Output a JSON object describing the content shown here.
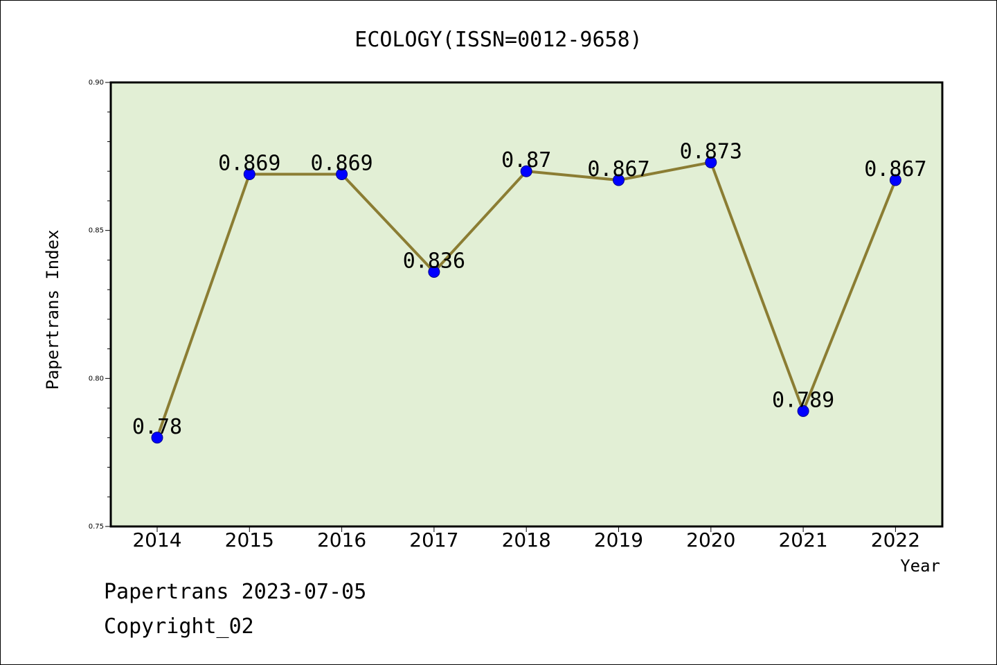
{
  "chart_data": {
    "type": "line",
    "title": "ECOLOGY(ISSN=0012-9658)",
    "xlabel": "Year",
    "ylabel": "Papertrans Index",
    "categories": [
      "2014",
      "2015",
      "2016",
      "2017",
      "2018",
      "2019",
      "2020",
      "2021",
      "2022"
    ],
    "series": [
      {
        "values": [
          0.78,
          0.869,
          0.869,
          0.836,
          0.87,
          0.867,
          0.873,
          0.789,
          0.867
        ],
        "labels": [
          "0.78",
          "0.869",
          "0.869",
          "0.836",
          "0.87",
          "0.867",
          "0.873",
          "0.789",
          "0.867"
        ]
      }
    ],
    "ylim": [
      0.75,
      0.9
    ],
    "yticks": [
      "0.75",
      "0.80",
      "0.85",
      "0.90"
    ],
    "grid": false,
    "colors": {
      "plot_background": "#e2efd5",
      "line": "#8b7d33",
      "marker": "#0000ff"
    }
  },
  "footer": {
    "date_line": "Papertrans 2023-07-05",
    "copyright": "Copyright_02"
  }
}
